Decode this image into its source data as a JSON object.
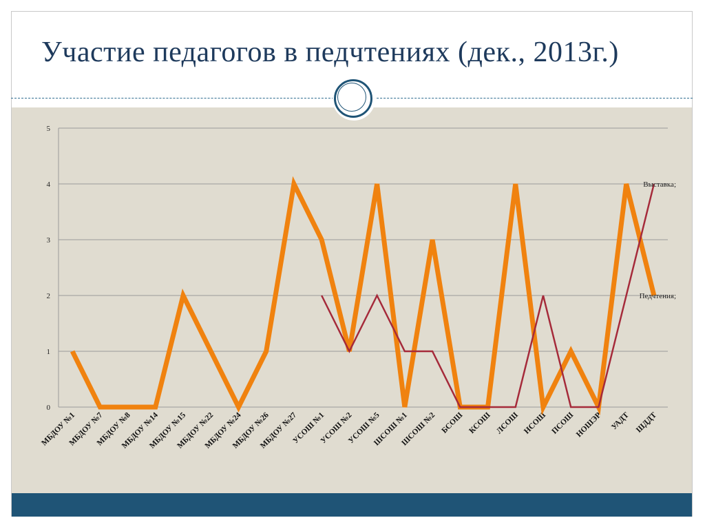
{
  "slide": {
    "title": "Участие педагогов в педчтениях (дек., 2013г.)"
  },
  "colors": {
    "title": "#1e3a5c",
    "panel_bg": "#e0dcd0",
    "footer_bar": "#1f5476",
    "ornament": "#1f5476"
  },
  "chart_data": {
    "type": "line",
    "title": "",
    "xlabel": "",
    "ylabel": "",
    "ylim": [
      0,
      5
    ],
    "yticks": [
      0,
      1,
      2,
      3,
      4,
      5
    ],
    "grid": true,
    "categories": [
      "МБДОУ №1",
      "МБДОУ №7",
      "МБДОУ №8",
      "МБДОУ №14",
      "МБДОУ №15",
      "МБДОУ №22",
      "МБДОУ №24",
      "МБДОУ №26",
      "МБДОУ №27",
      "УСОШ №1",
      "УСОШ №2",
      "УСОШ №5",
      "ШСОШ №1",
      "ШСОШ №2",
      "БСОШ",
      "КСОШ",
      "ЛСОШ",
      "НСОШ",
      "ПСОШ",
      "НОШЭР",
      "УАДТ",
      "ШДДТ"
    ],
    "series": [
      {
        "name": "Педчтения;",
        "color": "#f0820f",
        "values": [
          1,
          0,
          0,
          0,
          2,
          1,
          0,
          1,
          4,
          3,
          1,
          4,
          0,
          3,
          0,
          0,
          4,
          0,
          1,
          0,
          4,
          2
        ]
      },
      {
        "name": "Выставка;",
        "color": "#a52a3a",
        "values": [
          null,
          null,
          null,
          null,
          null,
          null,
          null,
          null,
          null,
          2,
          1,
          2,
          1,
          1,
          0,
          0,
          0,
          2,
          0,
          0,
          2,
          4
        ]
      }
    ]
  }
}
